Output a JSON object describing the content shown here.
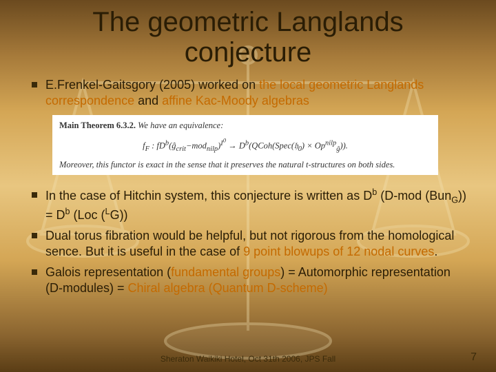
{
  "title": "The geometric Langlands conjecture",
  "bullets_top": [
    {
      "pre": "E.Frenkel-Gaitsgory (2005) worked on ",
      "hl1": "the local geometric Langlands correspondence",
      "mid": " and ",
      "hl2": "affine Kac-Moody algebras"
    }
  ],
  "theorem": {
    "header": "Main Theorem 6.3.2.",
    "lead": " We have an equivalence:",
    "equation_html": "f<sub>F</sub> : <i>fD</i><sup>b</sup>(ĝ<sub>crit</sub>−mod<sub>nilp</sub>)<sup>I<sup>0</sup></sup> → <i>D</i><sup>b</sup>(QCoh(Spec(𝔥<sub>0</sub>) × Op<sup>nilp</sup><sub>ĝ</sub>)).",
    "tail": "Moreover, this functor is exact in the sense that it preserves the natural t-structures on both sides."
  },
  "bullets_bottom": [
    {
      "plain": "In the case of Hitchin system, this conjecture is written as D",
      "sup1": "b",
      "plain2": " (D-mod (Bun",
      "sub1": "G",
      "plain3": ")) = D",
      "sup2": "b",
      "plain4": " (Loc (",
      "sup3": "L",
      "plain5": "G))"
    },
    {
      "pre": "Dual torus fibration would be helpful, but not rigorous from the homological sence. But it is useful in the case of ",
      "hl": "9 point blowups of 12 nodal curves",
      "post": "."
    },
    {
      "pre": "Galois representation (",
      "hl1": "fundamental groups",
      "mid1": ") = Automorphic representation (D-modules) = ",
      "hl2": "Chiral algebra (Quantum D-scheme)"
    }
  ],
  "footer": "Sheraton Waikiki Hotel, Oct 31th 2006, JPS Fall",
  "page_number": "7",
  "colors": {
    "highlight": "#c46a00",
    "text": "#2a1d05",
    "theorem_bg": "#ffffff"
  }
}
